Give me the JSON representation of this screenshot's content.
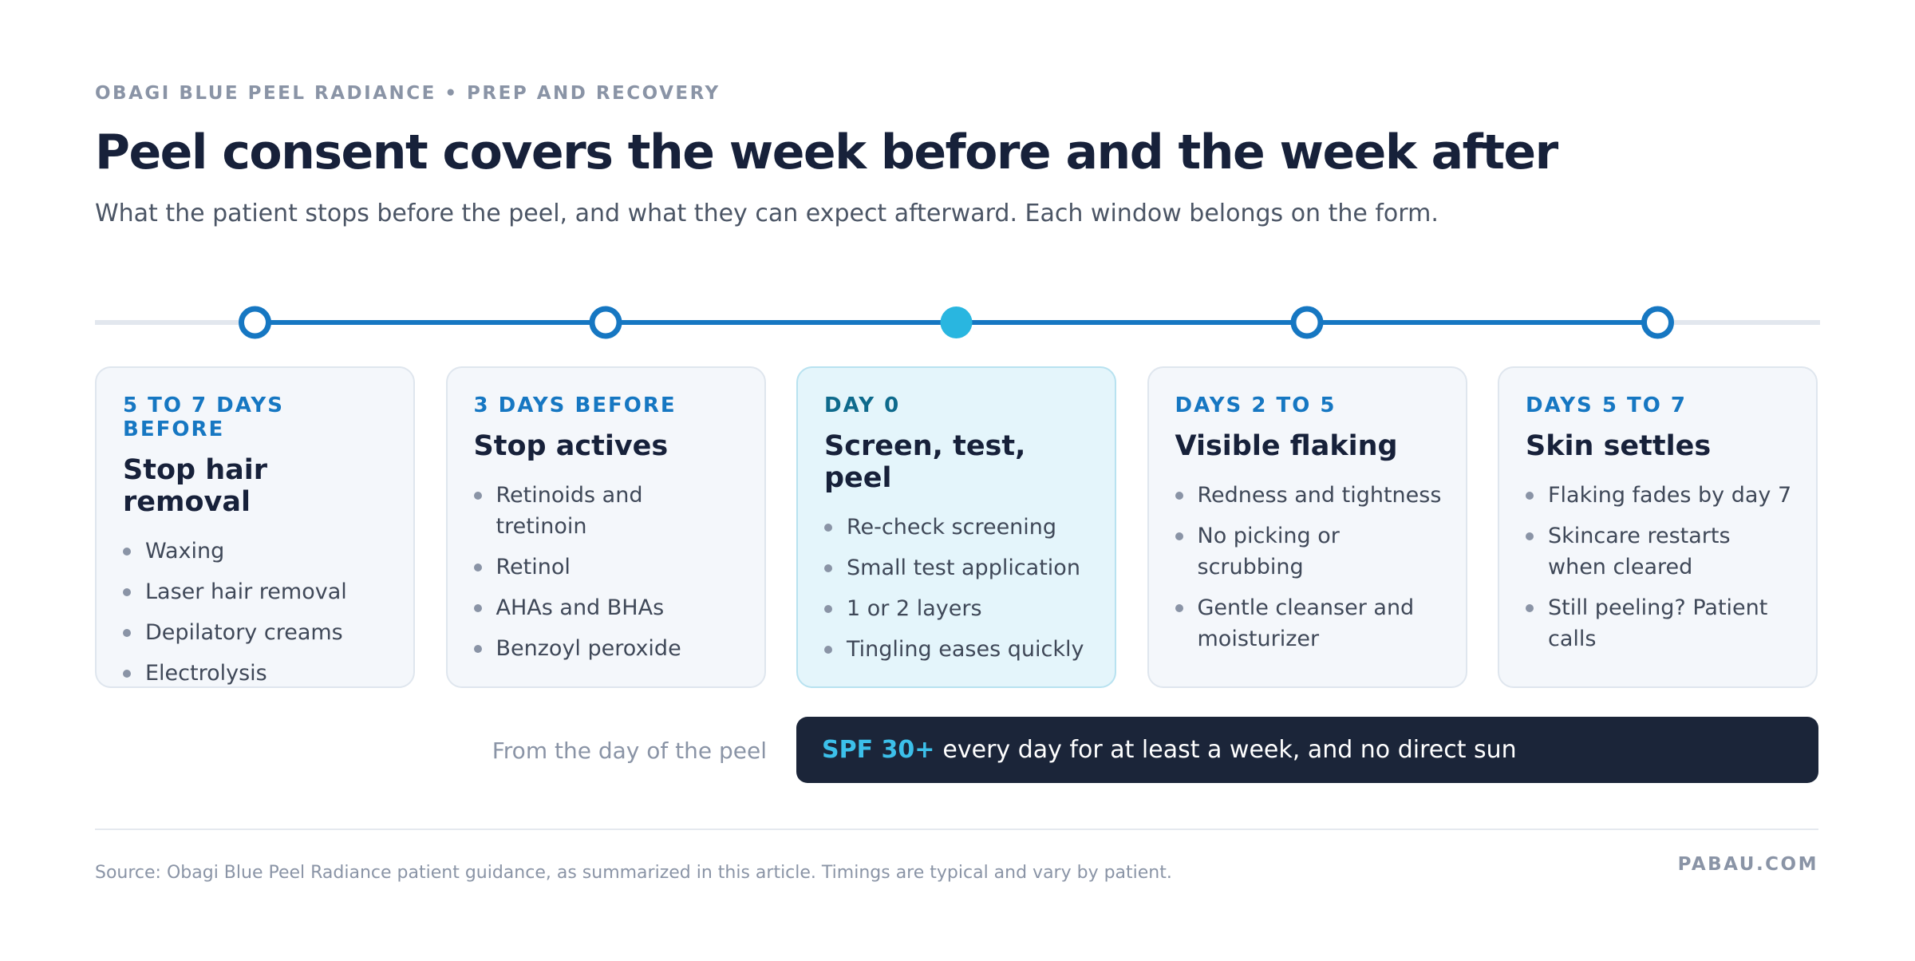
{
  "header": {
    "kicker": "OBAGI BLUE PEEL RADIANCE • PREP AND RECOVERY",
    "title": "Peel consent covers the week before and the week after",
    "subtitle": "What the patient stops before the peel, and what they can expect afterward. Each window belongs on the form."
  },
  "stages": [
    {
      "label": "5 TO 7 DAYS BEFORE",
      "title": "Stop hair removal",
      "items": [
        "Waxing",
        "Laser hair removal",
        "Depilatory creams",
        "Electrolysis"
      ]
    },
    {
      "label": "3 DAYS BEFORE",
      "title": "Stop actives",
      "items": [
        "Retinoids and tretinoin",
        "Retinol",
        "AHAs and BHAs",
        "Benzoyl peroxide"
      ]
    },
    {
      "label": "DAY 0",
      "title": "Screen, test, peel",
      "items": [
        "Re-check screening",
        "Small test application",
        "1 or 2 layers",
        "Tingling eases quickly"
      ]
    },
    {
      "label": "DAYS 2 TO 5",
      "title": "Visible flaking",
      "items": [
        "Redness and tightness",
        "No picking or scrubbing",
        "Gentle cleanser and moisturizer"
      ]
    },
    {
      "label": "DAYS 5 TO 7",
      "title": "Skin settles",
      "items": [
        "Flaking fades by day 7",
        "Skincare restarts when cleared",
        "Still peeling? Patient calls"
      ]
    }
  ],
  "spf": {
    "lead_in": "From the day of the peel",
    "highlight": "SPF 30+",
    "text": "every day for at least a week, and no direct sun"
  },
  "footer": {
    "source": "Source: Obagi Blue Peel Radiance patient guidance, as summarized in this article. Timings are typical and vary by patient.",
    "brand": "PABAU.COM"
  }
}
